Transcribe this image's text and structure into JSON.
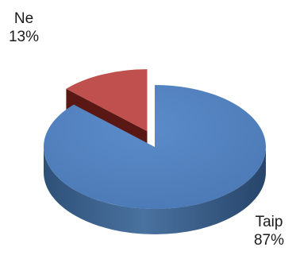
{
  "chart_data": {
    "type": "pie",
    "title": "",
    "slices": [
      {
        "label": "Taip",
        "value": 87,
        "value_label": "87%",
        "color": "#4f81bd",
        "exploded": false
      },
      {
        "label": "Ne",
        "value": 13,
        "value_label": "13%",
        "color": "#c0504d",
        "exploded": true
      }
    ],
    "style": "3d",
    "legend": "none"
  }
}
